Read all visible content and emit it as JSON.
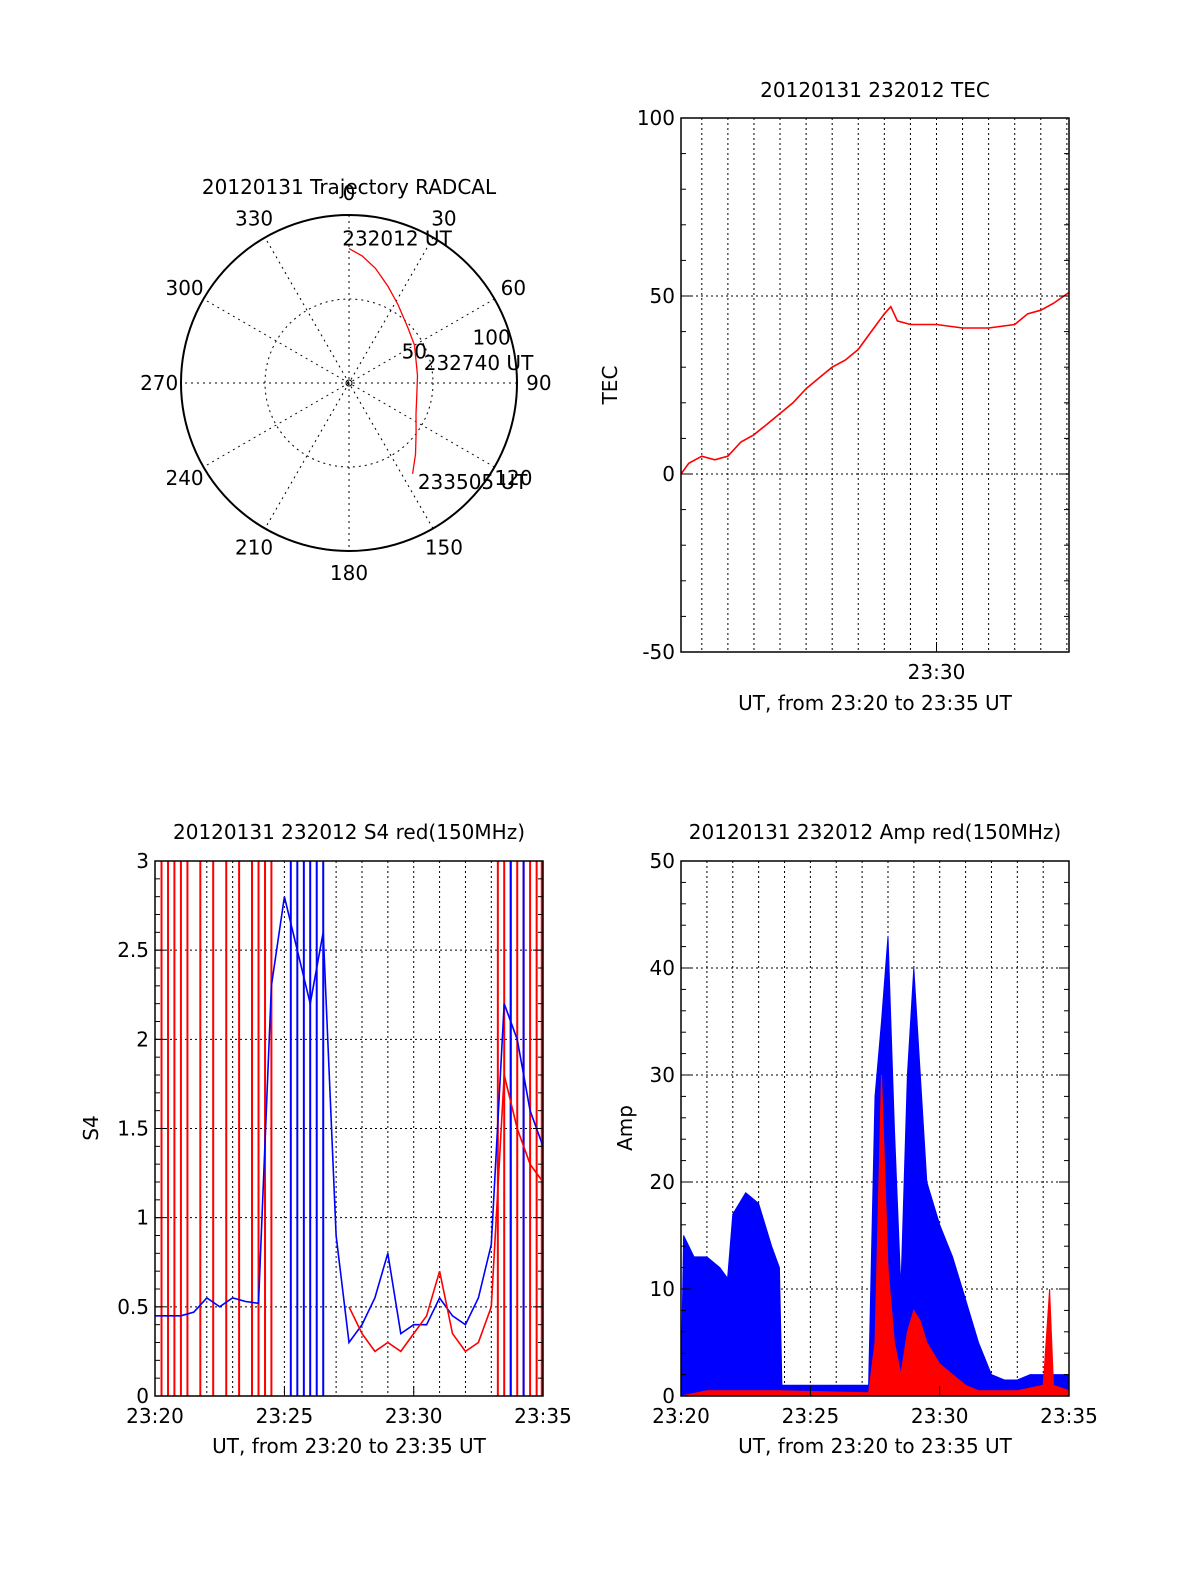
{
  "chart_data": [
    {
      "type": "polar",
      "title": "20120131 Trajectory RADCAL",
      "angle_labels": [
        "0",
        "30",
        "60",
        "90",
        "120",
        "150",
        "180",
        "210",
        "240",
        "270",
        "300",
        "330"
      ],
      "angles": [
        0,
        30,
        60,
        90,
        120,
        150,
        180,
        210,
        240,
        270,
        300,
        330
      ],
      "radius_max": 100,
      "radius_rings": [
        50,
        100
      ],
      "radius_labels": [
        "50",
        "100"
      ],
      "grid": true,
      "color": "#ff0000",
      "trajectory": [
        {
          "az": 0,
          "r": 80
        },
        {
          "az": 6,
          "r": 76
        },
        {
          "az": 13,
          "r": 70
        },
        {
          "az": 22,
          "r": 62
        },
        {
          "az": 32,
          "r": 55
        },
        {
          "az": 47,
          "r": 48
        },
        {
          "az": 60,
          "r": 45
        },
        {
          "az": 72,
          "r": 42
        },
        {
          "az": 84,
          "r": 41
        },
        {
          "az": 100,
          "r": 41
        },
        {
          "az": 115,
          "r": 44
        },
        {
          "az": 127,
          "r": 50
        },
        {
          "az": 137,
          "r": 58
        },
        {
          "az": 145,
          "r": 66
        }
      ],
      "annotations": [
        {
          "text": "232012 UT",
          "az": 0,
          "r": 80
        },
        {
          "text": "232740 UT",
          "az": 84,
          "r": 41
        },
        {
          "text": "233505 UT",
          "az": 145,
          "r": 66
        }
      ]
    },
    {
      "type": "line",
      "title": "20120131 232012 TEC",
      "xlabel": "UT, from 23:20 to 23:35 UT",
      "ylabel": "TEC",
      "xlim": [
        23.3367,
        23.5847
      ],
      "ylim": [
        -50,
        100
      ],
      "yticks": [
        "-50",
        "0",
        "50",
        "100"
      ],
      "xticks": [
        {
          "value": 23.5,
          "label": "23:30"
        }
      ],
      "grid": true,
      "series": [
        {
          "color": "#ff0000",
          "points": [
            [
              23.3367,
              0
            ],
            [
              23.3417,
              3
            ],
            [
              23.35,
              5
            ],
            [
              23.3583,
              4
            ],
            [
              23.3667,
              5
            ],
            [
              23.375,
              9
            ],
            [
              23.3833,
              11
            ],
            [
              23.3917,
              14
            ],
            [
              23.4,
              17
            ],
            [
              23.4083,
              20
            ],
            [
              23.4167,
              24
            ],
            [
              23.425,
              27
            ],
            [
              23.4333,
              30
            ],
            [
              23.4417,
              32
            ],
            [
              23.45,
              35
            ],
            [
              23.4583,
              40
            ],
            [
              23.4667,
              45
            ],
            [
              23.4708,
              47
            ],
            [
              23.475,
              43
            ],
            [
              23.4833,
              42
            ],
            [
              23.5,
              42
            ],
            [
              23.5167,
              41
            ],
            [
              23.5333,
              41
            ],
            [
              23.55,
              42
            ],
            [
              23.5583,
              45
            ],
            [
              23.5667,
              46
            ],
            [
              23.575,
              48
            ],
            [
              23.5847,
              51
            ]
          ]
        }
      ]
    },
    {
      "type": "line",
      "title": "20120131 232012 S4 red(150MHz)",
      "xlabel": "UT, from 23:20 to 23:35 UT",
      "ylabel": "S4",
      "xlim": [
        23.3333,
        23.5833
      ],
      "ylim": [
        0,
        3
      ],
      "yticks": [
        "0",
        "0.5",
        "1",
        "1.5",
        "2",
        "2.5",
        "3"
      ],
      "xticks": [
        {
          "value": 23.3333,
          "label": "23:20"
        },
        {
          "value": 23.4167,
          "label": "23:25"
        },
        {
          "value": 23.5,
          "label": "23:30"
        },
        {
          "value": 23.5833,
          "label": "23:35"
        }
      ],
      "grid": true,
      "series": [
        {
          "color": "#0000ff",
          "points": [
            [
              23.3333,
              0.45
            ],
            [
              23.3417,
              0.45
            ],
            [
              23.35,
              0.45
            ],
            [
              23.3583,
              0.47
            ],
            [
              23.3667,
              0.55
            ],
            [
              23.375,
              0.5
            ],
            [
              23.3833,
              0.55
            ],
            [
              23.3917,
              0.53
            ],
            [
              23.4,
              0.52
            ],
            [
              23.4083,
              2.3
            ],
            [
              23.4167,
              2.8
            ],
            [
              23.425,
              2.5
            ],
            [
              23.4333,
              2.2
            ],
            [
              23.4417,
              2.6
            ],
            [
              23.45,
              0.9
            ],
            [
              23.4583,
              0.3
            ],
            [
              23.4667,
              0.4
            ],
            [
              23.475,
              0.55
            ],
            [
              23.4833,
              0.8
            ],
            [
              23.4917,
              0.35
            ],
            [
              23.5,
              0.4
            ],
            [
              23.5083,
              0.4
            ],
            [
              23.5167,
              0.55
            ],
            [
              23.525,
              0.45
            ],
            [
              23.5333,
              0.4
            ],
            [
              23.5417,
              0.55
            ],
            [
              23.55,
              0.85
            ],
            [
              23.5583,
              2.2
            ],
            [
              23.5667,
              2.0
            ],
            [
              23.575,
              1.6
            ],
            [
              23.5833,
              1.4
            ]
          ]
        },
        {
          "color": "#ff0000",
          "points": [
            [
              23.4583,
              0.5
            ],
            [
              23.4667,
              0.35
            ],
            [
              23.475,
              0.25
            ],
            [
              23.4833,
              0.3
            ],
            [
              23.4917,
              0.25
            ],
            [
              23.5,
              0.35
            ],
            [
              23.5083,
              0.45
            ],
            [
              23.5167,
              0.7
            ],
            [
              23.525,
              0.35
            ],
            [
              23.5333,
              0.25
            ],
            [
              23.5417,
              0.3
            ],
            [
              23.55,
              0.5
            ],
            [
              23.5583,
              1.8
            ],
            [
              23.5667,
              1.5
            ],
            [
              23.575,
              1.3
            ],
            [
              23.5833,
              1.2
            ]
          ]
        }
      ],
      "spikes": [
        {
          "color": "#ff0000",
          "x": [
            23.3375,
            23.3417,
            23.3458,
            23.35,
            23.3542,
            23.3625,
            23.3708,
            23.3792,
            23.3875,
            23.3958,
            23.4,
            23.4042,
            23.4083,
            23.5542,
            23.5583,
            23.5625,
            23.5667,
            23.5708,
            23.575,
            23.5792,
            23.5825
          ]
        },
        {
          "color": "#0000ff",
          "x": [
            23.4208,
            23.425,
            23.4292,
            23.4333,
            23.4375,
            23.4417,
            23.5625,
            23.5708
          ]
        }
      ]
    },
    {
      "type": "line",
      "title": "20120131 232012 Amp red(150MHz)",
      "xlabel": "UT, from 23:20 to 23:35 UT",
      "ylabel": "Amp",
      "xlim": [
        23.3333,
        23.5833
      ],
      "ylim": [
        0,
        50
      ],
      "yticks": [
        "0",
        "10",
        "20",
        "30",
        "40",
        "50"
      ],
      "xticks": [
        {
          "value": 23.3333,
          "label": "23:20"
        },
        {
          "value": 23.4167,
          "label": "23:25"
        },
        {
          "value": 23.5,
          "label": "23:30"
        },
        {
          "value": 23.5833,
          "label": "23:35"
        }
      ],
      "grid": true,
      "series": [
        {
          "color": "#0000ff",
          "fill": true,
          "points": [
            [
              23.3333,
              0
            ],
            [
              23.335,
              15
            ],
            [
              23.3417,
              13
            ],
            [
              23.35,
              13
            ],
            [
              23.3583,
              12
            ],
            [
              23.3633,
              11
            ],
            [
              23.3667,
              17
            ],
            [
              23.375,
              19
            ],
            [
              23.3833,
              18
            ],
            [
              23.3917,
              14
            ],
            [
              23.3967,
              12
            ],
            [
              23.3983,
              1
            ],
            [
              23.4083,
              1
            ],
            [
              23.4167,
              1
            ],
            [
              23.425,
              1
            ],
            [
              23.4333,
              1
            ],
            [
              23.4417,
              1
            ],
            [
              23.4542,
              1
            ],
            [
              23.4583,
              28
            ],
            [
              23.4625,
              35
            ],
            [
              23.4667,
              43
            ],
            [
              23.4708,
              25
            ],
            [
              23.475,
              10
            ],
            [
              23.4792,
              30
            ],
            [
              23.4833,
              40
            ],
            [
              23.4875,
              30
            ],
            [
              23.4917,
              20
            ],
            [
              23.5,
              16
            ],
            [
              23.5083,
              13
            ],
            [
              23.5167,
              9
            ],
            [
              23.525,
              5
            ],
            [
              23.5333,
              2
            ],
            [
              23.5417,
              1.5
            ],
            [
              23.55,
              1.5
            ],
            [
              23.5583,
              2
            ],
            [
              23.5667,
              2
            ],
            [
              23.575,
              2
            ],
            [
              23.5833,
              2
            ]
          ]
        },
        {
          "color": "#ff0000",
          "fill": true,
          "points": [
            [
              23.3333,
              0
            ],
            [
              23.35,
              0.5
            ],
            [
              23.3667,
              0.5
            ],
            [
              23.3833,
              0.5
            ],
            [
              23.3967,
              0.5
            ],
            [
              23.4542,
              0.3
            ],
            [
              23.4583,
              5
            ],
            [
              23.4625,
              30
            ],
            [
              23.4667,
              12
            ],
            [
              23.4708,
              5
            ],
            [
              23.475,
              2
            ],
            [
              23.4792,
              6
            ],
            [
              23.4833,
              8
            ],
            [
              23.4875,
              7
            ],
            [
              23.4917,
              5
            ],
            [
              23.5,
              3
            ],
            [
              23.5083,
              2
            ],
            [
              23.5167,
              1
            ],
            [
              23.525,
              0.5
            ],
            [
              23.55,
              0.5
            ],
            [
              23.5667,
              1
            ],
            [
              23.5708,
              10
            ],
            [
              23.5733,
              1
            ],
            [
              23.5833,
              0.5
            ]
          ]
        }
      ]
    }
  ]
}
